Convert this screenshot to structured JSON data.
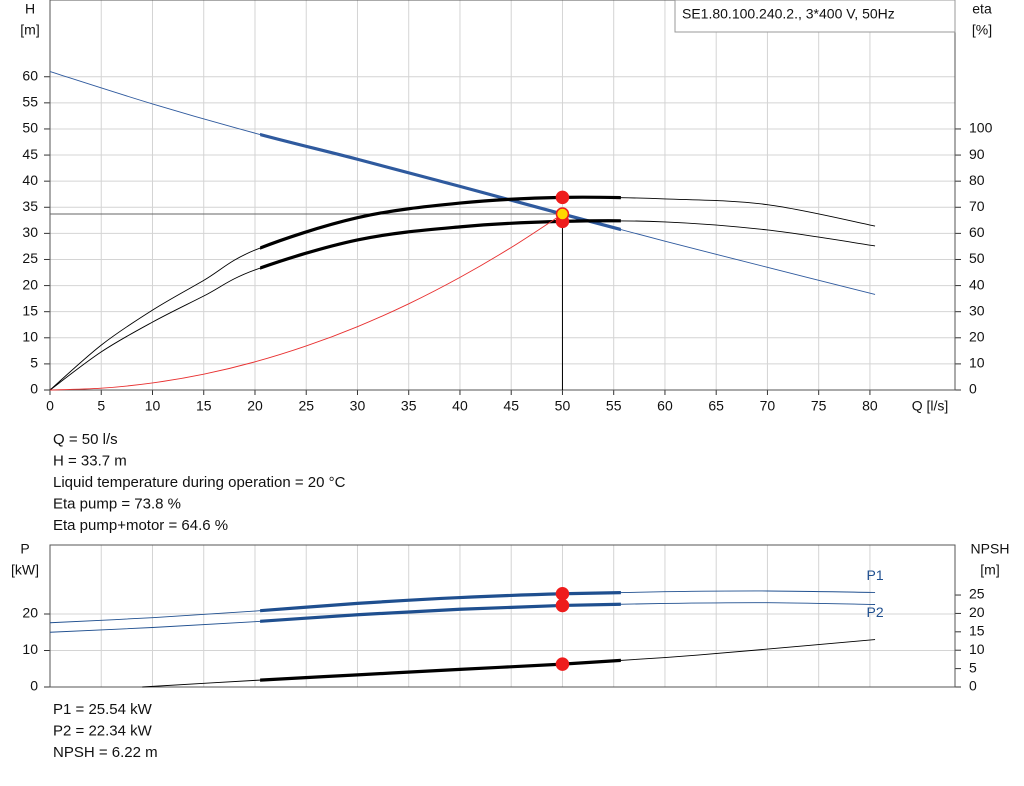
{
  "chart_data": [
    {
      "type": "line",
      "title": "SE1.80.100.240.2., 3*400 V, 50Hz",
      "y_label": [
        "H",
        "[m]"
      ],
      "y2_label": [
        "eta",
        "[%]"
      ],
      "x_label": "Q [l/s]",
      "xlim": [
        0,
        88.3
      ],
      "xticks": [
        0,
        5,
        10,
        15,
        20,
        25,
        30,
        35,
        40,
        45,
        50,
        55,
        60,
        65,
        70,
        75,
        80
      ],
      "ylim": [
        0,
        74.7
      ],
      "yticks": [
        0,
        5,
        10,
        15,
        20,
        25,
        30,
        35,
        40,
        45,
        50,
        55,
        60
      ],
      "y2lim": [
        0,
        149.4
      ],
      "y2ticks": [
        0,
        10,
        20,
        30,
        40,
        50,
        60,
        70,
        80,
        90,
        100
      ],
      "grid": true,
      "operating_range": [
        20.5,
        55.7
      ],
      "series": [
        {
          "color": "#2f5a9e",
          "axis": "y",
          "thick": true,
          "x": [
            0,
            10,
            20,
            30,
            40,
            50,
            60,
            70,
            80.5
          ],
          "values": [
            61,
            54.8,
            49.2,
            44.2,
            39,
            33.7,
            28.5,
            23.5,
            18.3
          ]
        },
        {
          "color": "#000000",
          "axis": "y2",
          "thick": true,
          "x": [
            0,
            5,
            10,
            15,
            20,
            30,
            40,
            50,
            60,
            70,
            80.5
          ],
          "values": [
            0,
            17.2,
            30.6,
            42,
            53.6,
            66,
            71.6,
            73.8,
            73.2,
            71,
            62.8
          ]
        },
        {
          "color": "#000000",
          "axis": "y2",
          "thick": true,
          "x": [
            0,
            5,
            10,
            15,
            20,
            30,
            40,
            50,
            60,
            70,
            80.5
          ],
          "values": [
            0,
            14.6,
            26,
            36,
            46,
            57.5,
            62.5,
            64.6,
            64.4,
            61.3,
            55.2
          ]
        },
        {
          "color": "#e83030",
          "axis": "y",
          "thick": false,
          "x": [
            0,
            5,
            10,
            15,
            20,
            25,
            30,
            35,
            40,
            45,
            50
          ],
          "values": [
            0,
            0.34,
            1.35,
            3.03,
            5.39,
            8.43,
            12.13,
            16.51,
            21.57,
            27.3,
            33.7
          ]
        }
      ],
      "duty_point": {
        "x": 50,
        "y": 33.7
      },
      "markers": [
        {
          "x": 50,
          "y": 73.8,
          "axis": "y2",
          "color": "#ee1c1c"
        },
        {
          "x": 50,
          "y": 64.6,
          "axis": "y2",
          "color": "#ee1c1c"
        },
        {
          "x": 50,
          "y": 33.7,
          "axis": "y",
          "color": "#ffd800"
        }
      ],
      "info": [
        "Q = 50 l/s",
        "H = 33.7 m",
        "Liquid temperature during operation = 20 °C",
        "Eta pump = 73.8 %",
        "Eta pump+motor = 64.6 %"
      ]
    },
    {
      "type": "line",
      "y_label": [
        "P",
        "[kW]"
      ],
      "y2_label": [
        "NPSH",
        "[m]"
      ],
      "xlim": [
        0,
        88.3
      ],
      "ylim": [
        0,
        38.9
      ],
      "yticks": [
        0,
        10,
        20
      ],
      "y2lim": [
        0,
        38.6
      ],
      "y2ticks": [
        0,
        5,
        10,
        15,
        20,
        25
      ],
      "grid": true,
      "operating_range": [
        20.5,
        55.7
      ],
      "series": [
        {
          "name": "P1",
          "color": "#1f4f8f",
          "axis": "y",
          "thick": true,
          "x": [
            0,
            10,
            20,
            30,
            40,
            50,
            60,
            70,
            80.5
          ],
          "values": [
            17.6,
            19,
            20.8,
            22.9,
            24.5,
            25.54,
            26.1,
            26.3,
            25.9
          ]
        },
        {
          "name": "P2",
          "color": "#1f4f8f",
          "axis": "y",
          "thick": true,
          "x": [
            0,
            10,
            20,
            30,
            40,
            50,
            60,
            70,
            80.5
          ],
          "values": [
            15,
            16.3,
            17.9,
            19.8,
            21.3,
            22.34,
            22.9,
            23.1,
            22.6
          ]
        },
        {
          "color": "#000000",
          "axis": "y2",
          "thick": true,
          "x": [
            9,
            20,
            30,
            40,
            50,
            60,
            70,
            80.5
          ],
          "values": [
            0,
            1.8,
            3.3,
            4.8,
            6.22,
            8,
            10.3,
            12.9
          ]
        }
      ],
      "markers": [
        {
          "x": 50,
          "y": 25.54,
          "axis": "y",
          "color": "#ee1c1c"
        },
        {
          "x": 50,
          "y": 22.34,
          "axis": "y",
          "color": "#ee1c1c"
        },
        {
          "x": 50,
          "y": 6.22,
          "axis": "y2",
          "color": "#ee1c1c"
        }
      ],
      "info": [
        "P1 = 25.54 kW",
        "P2 = 22.34 kW",
        "NPSH = 6.22 m"
      ]
    }
  ]
}
